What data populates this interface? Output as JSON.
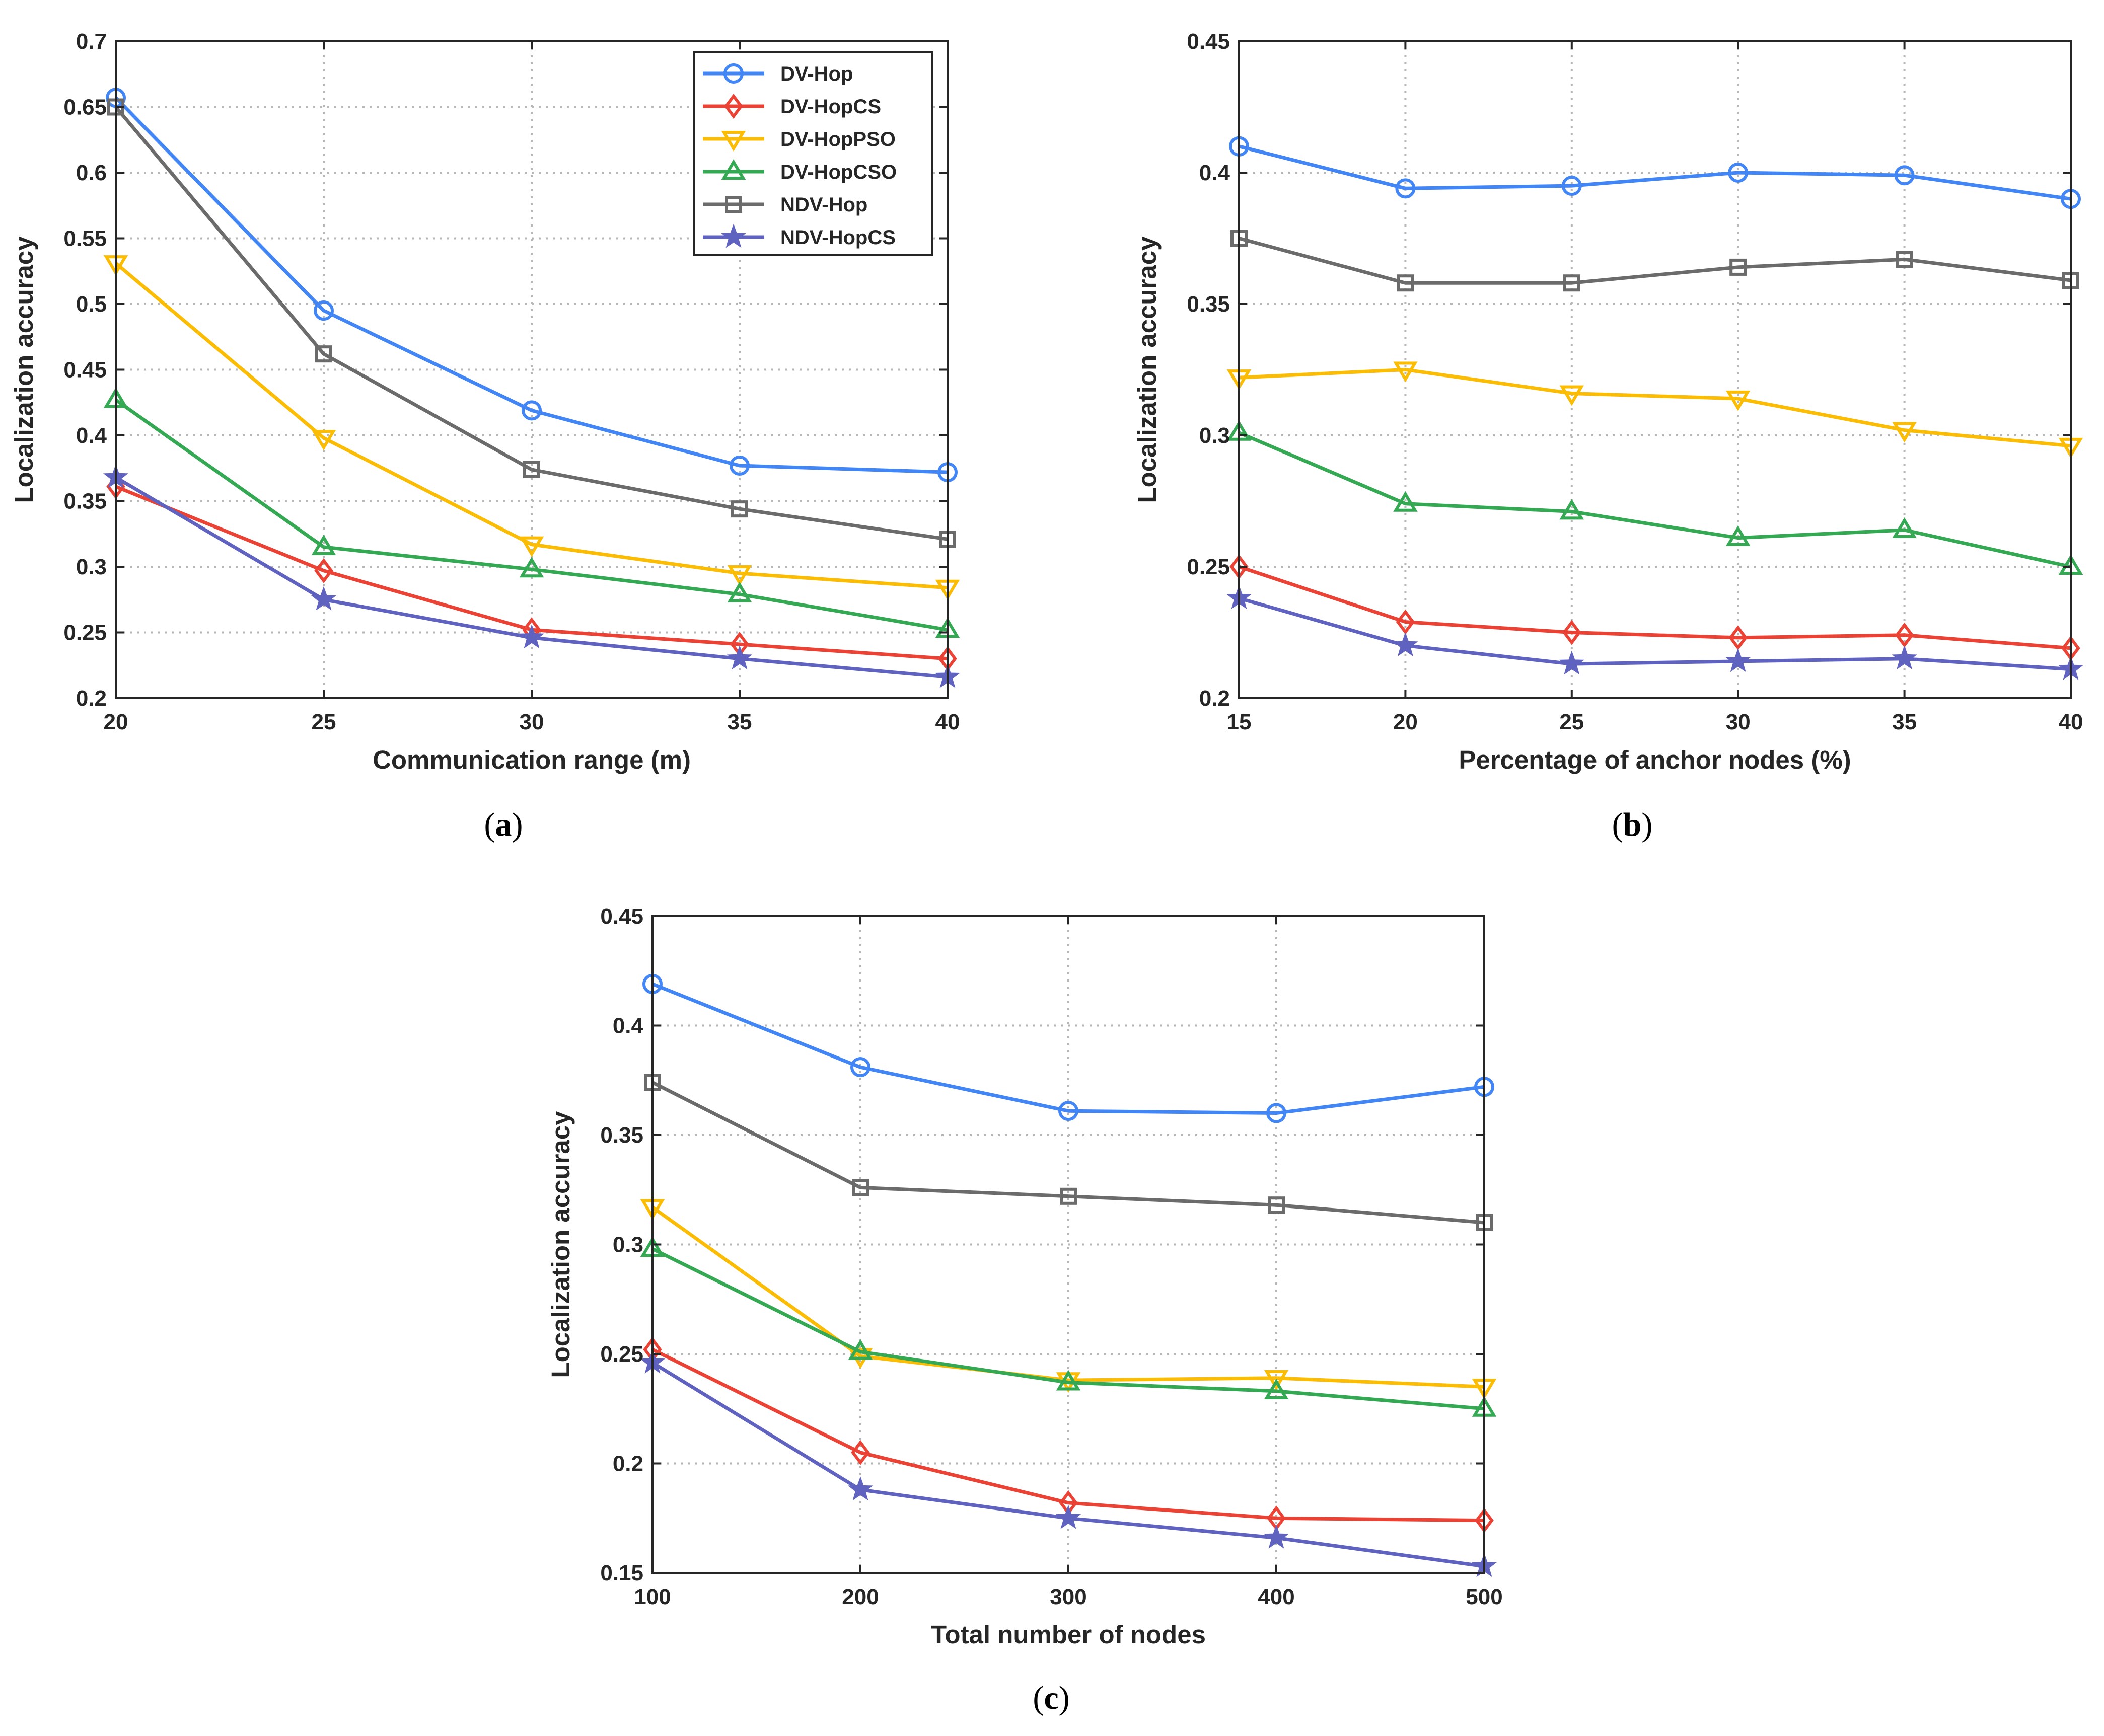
{
  "colors": {
    "DV-Hop": "#4285f4",
    "DV-HopCS": "#ea4335",
    "DV-HopPSO": "#fbbc05",
    "DV-HopCSO": "#34a853",
    "NDV-Hop": "#6b6b6b",
    "NDV-HopCS": "#6062c0"
  },
  "markers": {
    "DV-Hop": "circle",
    "DV-HopCS": "diamond",
    "DV-HopPSO": "triangle-down",
    "DV-HopCSO": "triangle-up",
    "NDV-Hop": "square",
    "NDV-HopCS": "star"
  },
  "chart_data": [
    {
      "type": "line",
      "caption": "(a)",
      "xlabel": "Communication range (m)",
      "ylabel": "Localization accuracy",
      "x": [
        20,
        25,
        30,
        35,
        40
      ],
      "xticks": [
        "20",
        "25",
        "30",
        "35",
        "40"
      ],
      "xlim": [
        20,
        40
      ],
      "ylim": [
        0.2,
        0.7
      ],
      "yticks": [
        "0.2",
        "0.25",
        "0.3",
        "0.35",
        "0.4",
        "0.45",
        "0.5",
        "0.55",
        "0.6",
        "0.65",
        "0.7"
      ],
      "grid": true,
      "legend": "top-right",
      "series": [
        {
          "name": "DV-Hop",
          "values": [
            0.657,
            0.495,
            0.419,
            0.377,
            0.372
          ]
        },
        {
          "name": "DV-HopCS",
          "values": [
            0.361,
            0.297,
            0.252,
            0.241,
            0.23
          ]
        },
        {
          "name": "DV-HopPSO",
          "values": [
            0.531,
            0.398,
            0.317,
            0.295,
            0.284
          ]
        },
        {
          "name": "DV-HopCSO",
          "values": [
            0.427,
            0.315,
            0.298,
            0.279,
            0.252
          ]
        },
        {
          "name": "NDV-Hop",
          "values": [
            0.65,
            0.462,
            0.374,
            0.344,
            0.321
          ]
        },
        {
          "name": "NDV-HopCS",
          "values": [
            0.368,
            0.275,
            0.246,
            0.23,
            0.216
          ]
        }
      ]
    },
    {
      "type": "line",
      "caption": "(b)",
      "xlabel": "Percentage of anchor nodes (%)",
      "ylabel": "Localization accuracy",
      "x": [
        15,
        20,
        25,
        30,
        35,
        40
      ],
      "xticks": [
        "15",
        "20",
        "25",
        "30",
        "35",
        "40"
      ],
      "xlim": [
        15,
        40
      ],
      "ylim": [
        0.2,
        0.45
      ],
      "yticks": [
        "0.2",
        "0.25",
        "0.3",
        "0.35",
        "0.4",
        "0.45"
      ],
      "grid": true,
      "series": [
        {
          "name": "DV-Hop",
          "values": [
            0.41,
            0.394,
            0.395,
            0.4,
            0.399,
            0.39
          ]
        },
        {
          "name": "DV-HopCS",
          "values": [
            0.25,
            0.229,
            0.225,
            0.223,
            0.224,
            0.219
          ]
        },
        {
          "name": "DV-HopPSO",
          "values": [
            0.322,
            0.325,
            0.316,
            0.314,
            0.302,
            0.296
          ]
        },
        {
          "name": "DV-HopCSO",
          "values": [
            0.301,
            0.274,
            0.271,
            0.261,
            0.264,
            0.25
          ]
        },
        {
          "name": "NDV-Hop",
          "values": [
            0.375,
            0.358,
            0.358,
            0.364,
            0.367,
            0.359
          ]
        },
        {
          "name": "NDV-HopCS",
          "values": [
            0.238,
            0.22,
            0.213,
            0.214,
            0.215,
            0.211
          ]
        }
      ]
    },
    {
      "type": "line",
      "caption": "(c)",
      "xlabel": "Total number of nodes",
      "ylabel": "Localization accuracy",
      "x": [
        100,
        200,
        300,
        400,
        500
      ],
      "xticks": [
        "100",
        "200",
        "300",
        "400",
        "500"
      ],
      "xlim": [
        100,
        500
      ],
      "ylim": [
        0.15,
        0.45
      ],
      "yticks": [
        "0.15",
        "0.2",
        "0.25",
        "0.3",
        "0.35",
        "0.4",
        "0.45"
      ],
      "grid": true,
      "series": [
        {
          "name": "DV-Hop",
          "values": [
            0.419,
            0.381,
            0.361,
            0.36,
            0.372
          ]
        },
        {
          "name": "DV-HopCS",
          "values": [
            0.252,
            0.205,
            0.182,
            0.175,
            0.174
          ]
        },
        {
          "name": "DV-HopPSO",
          "values": [
            0.317,
            0.249,
            0.238,
            0.239,
            0.235
          ]
        },
        {
          "name": "DV-HopCSO",
          "values": [
            0.298,
            0.251,
            0.237,
            0.233,
            0.225
          ]
        },
        {
          "name": "NDV-Hop",
          "values": [
            0.374,
            0.326,
            0.322,
            0.318,
            0.31
          ]
        },
        {
          "name": "NDV-HopCS",
          "values": [
            0.246,
            0.188,
            0.175,
            0.166,
            0.153
          ]
        }
      ]
    }
  ]
}
